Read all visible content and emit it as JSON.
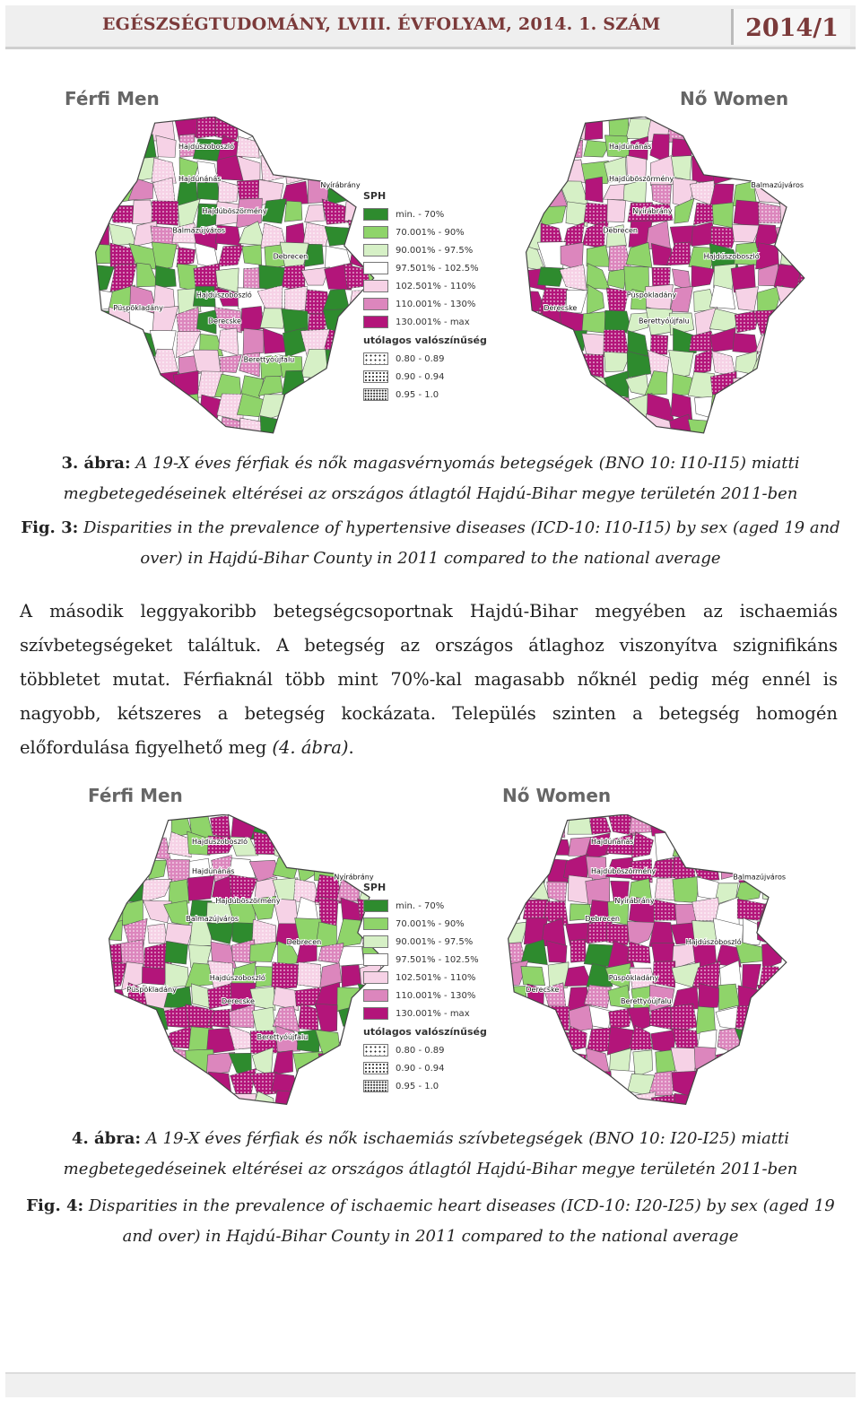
{
  "header": {
    "journal": "EGÉSZSÉGTUDOMÁNY, LVIII. ÉVFOLYAM, 2014. 1. SZÁM",
    "issue": "2014/1"
  },
  "figure3": {
    "left_panel_title": "Férfi Men",
    "right_panel_title": "Nő Women",
    "legend": {
      "title": "SPH",
      "classes": [
        {
          "label": "min. - 70%",
          "color": "#2e8b2e"
        },
        {
          "label": "70.001% - 90%",
          "color": "#8fd46a"
        },
        {
          "label": "90.001% - 97.5%",
          "color": "#d6f0c6"
        },
        {
          "label": "97.501% - 102.5%",
          "color": "#ffffff"
        },
        {
          "label": "102.501% - 110%",
          "color": "#f6d2e6"
        },
        {
          "label": "110.001% - 130%",
          "color": "#dc86bd"
        },
        {
          "label": "130.001% - max",
          "color": "#b3157a"
        }
      ],
      "prob_title": "utólagos valószínűség",
      "prob_classes": [
        {
          "label": "0.80 - 0.89"
        },
        {
          "label": "0.90 - 0.94"
        },
        {
          "label": "0.95 - 1.0"
        }
      ]
    },
    "map_labels_men": [
      "Hajdúszoboszló",
      "Hajdúnánás",
      "Hajdúböszörmény",
      "Nyírábrány",
      "Balmazújváros",
      "Debrecen",
      "Hajdúszoboszló",
      "Püspökladány",
      "Derecske",
      "Berettyóújfalu"
    ],
    "map_labels_women": [
      "Hajdúnánás",
      "Hajdúböszörmény",
      "Nyírábrány",
      "Balmazújváros",
      "Debrecen",
      "Hajdúszoboszló",
      "Püspökladány",
      "Derecske",
      "Berettyóújfalu"
    ],
    "caption_hu_bold": "3. ábra:",
    "caption_hu": "A 19-X éves férfiak és nők magasvérnyomás betegségek (BNO 10: I10-I15) miatti megbetegedéseinek eltérései az országos átlagtól Hajdú-Bihar megye területén 2011-ben",
    "caption_en_bold": "Fig. 3:",
    "caption_en": "Disparities in the prevalence of hypertensive diseases (ICD-10: I10-I15) by sex (aged 19 and over) in Hajdú-Bihar County in 2011 compared to the national average"
  },
  "paragraph": {
    "text_before_ref": "A második leggyakoribb betegségcsoportnak Hajdú-Bihar megyében az ischaemiás szívbetegségeket találtuk. A betegség az országos átlaghoz viszonyítva szignifikáns többletet mutat. Férfiaknál több mint 70%-kal magasabb nőknél pedig még ennél is nagyobb, kétszeres a betegség kockázata. Település szinten a betegség homogén előfordulása figyelhető meg ",
    "ref": "(4. ábra)",
    "end": "."
  },
  "figure4": {
    "left_panel_title": "Férfi Men",
    "right_panel_title": "Nő Women",
    "caption_hu_bold": "4. ábra:",
    "caption_hu": "A 19-X éves férfiak és nők ischaemiás szívbetegségek (BNO 10: I20-I25) miatti megbetegedéseinek eltérései az országos átlagtól Hajdú-Bihar megye területén 2011-ben",
    "caption_en_bold": "Fig. 4:",
    "caption_en": "Disparities in the prevalence of ischaemic heart diseases (ICD-10: I20-I25) by sex (aged 19 and over) in Hajdú-Bihar County in 2011 compared to the national average"
  }
}
